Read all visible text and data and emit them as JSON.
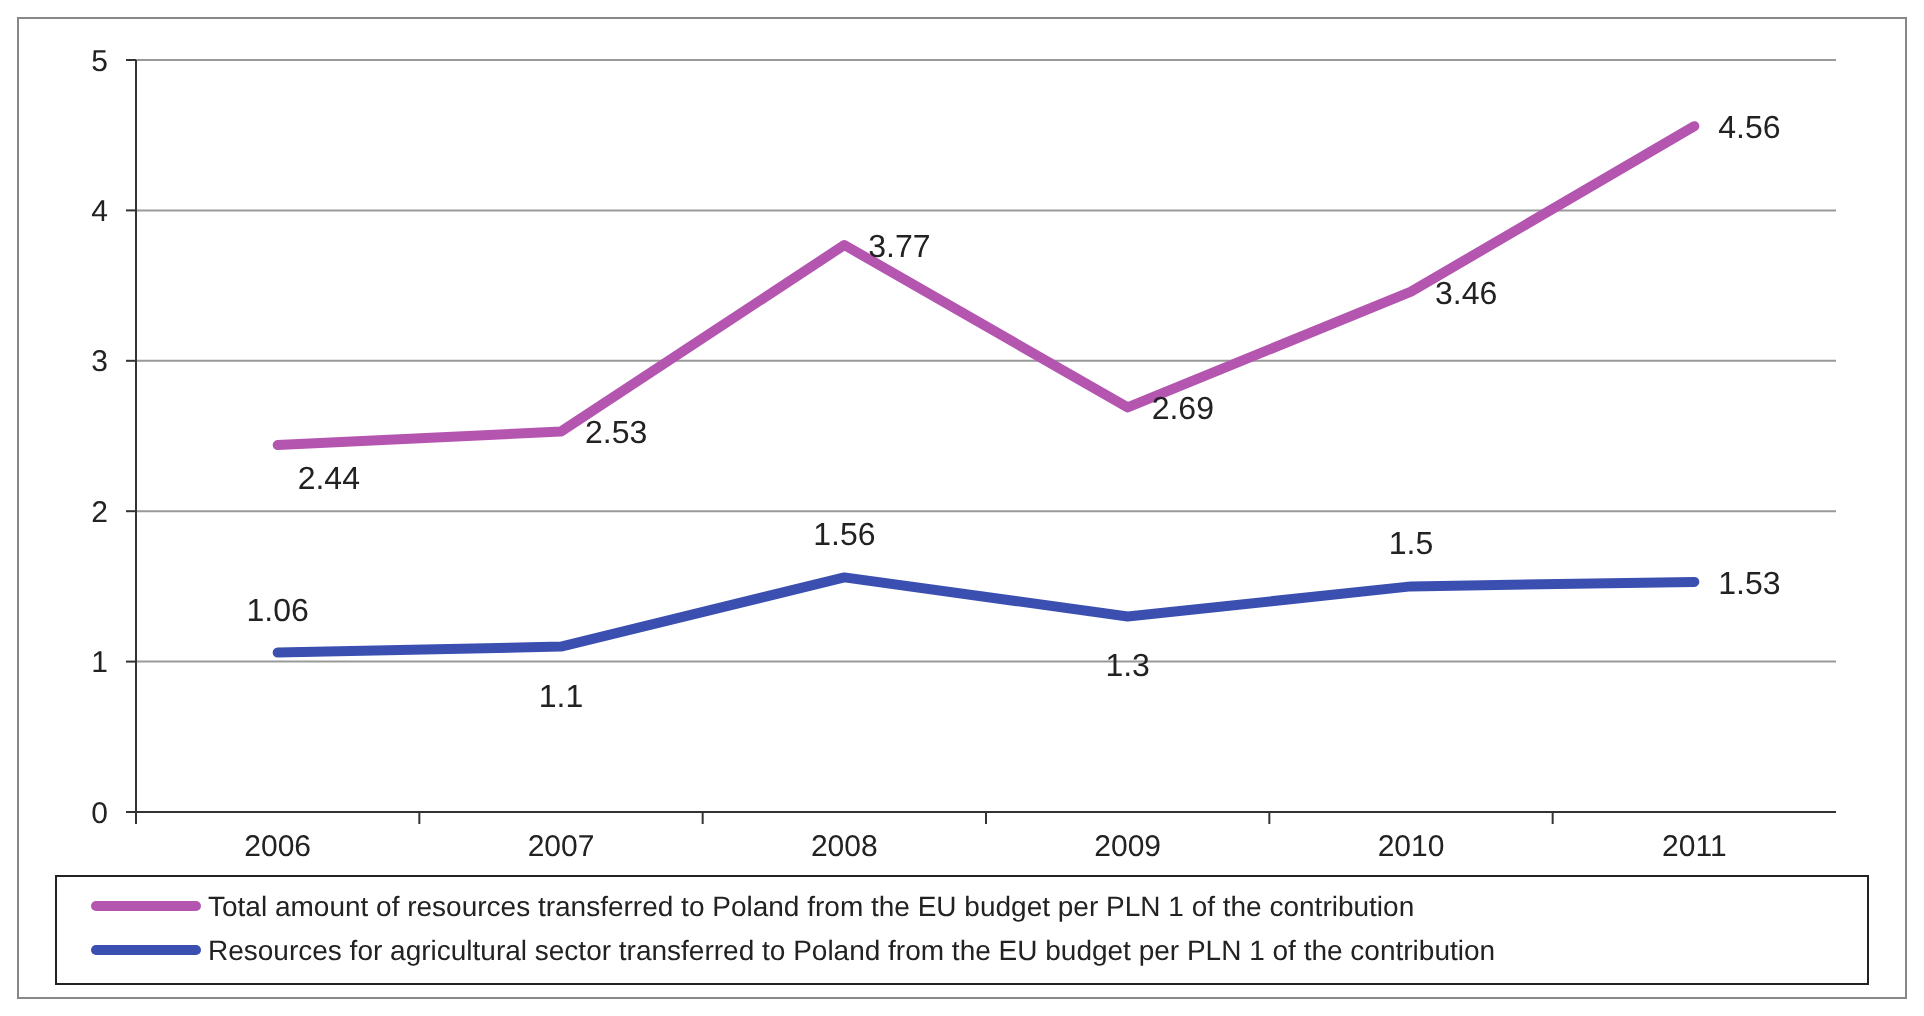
{
  "chart_data": {
    "type": "line",
    "categories": [
      "2006",
      "2007",
      "2008",
      "2009",
      "2010",
      "2011"
    ],
    "series": [
      {
        "name": "Total amount of resources transferred to Poland from the EU budget per PLN 1 of the contribution",
        "color": "#b455b0",
        "values": [
          2.44,
          2.53,
          3.77,
          2.69,
          3.46,
          4.56
        ]
      },
      {
        "name": "Resources for agricultural sector transferred to Poland from the EU budget per PLN 1 of the contribution",
        "color": "#3a4fb0",
        "values": [
          1.06,
          1.1,
          1.56,
          1.3,
          1.5,
          1.53
        ]
      }
    ],
    "ylim": [
      0,
      5
    ],
    "yticks": [
      0,
      1,
      2,
      3,
      4,
      5
    ],
    "grid": "y",
    "legend": "bottom",
    "data_labels": true,
    "marker": "none",
    "line_style": "solid"
  }
}
